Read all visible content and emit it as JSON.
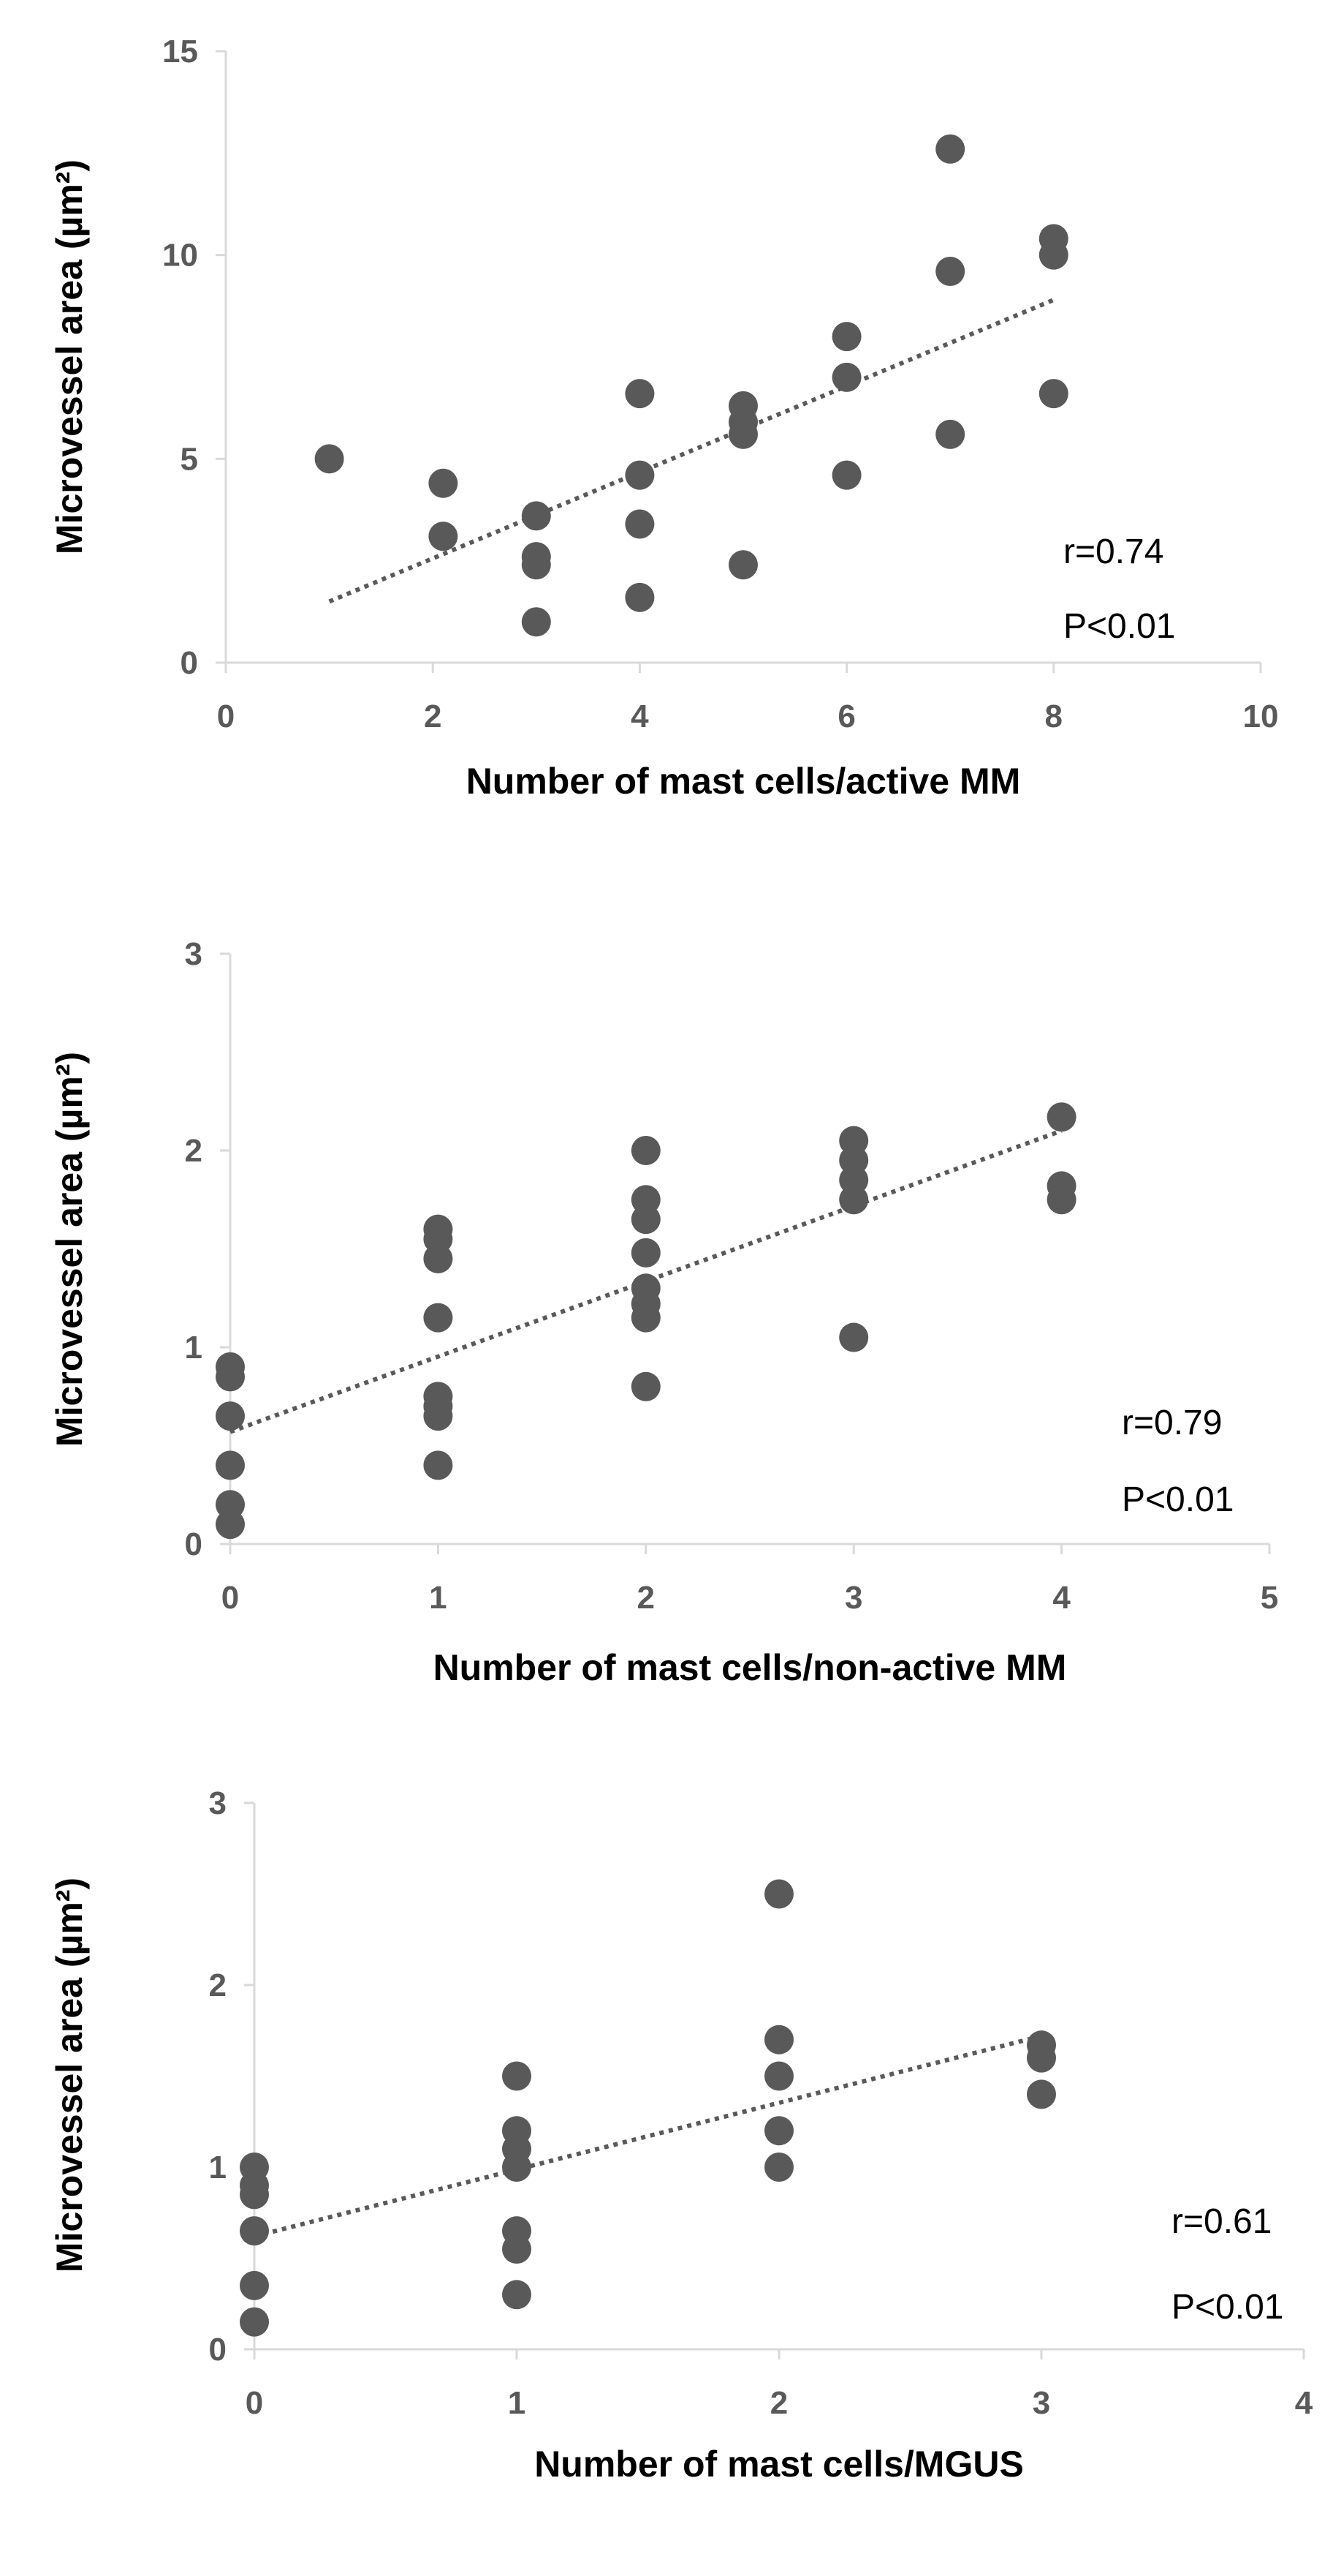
{
  "chart_data": [
    {
      "type": "scatter",
      "xlabel": "Number of mast cells/active MM",
      "ylabel": "Microvessel area (µm²)",
      "xlim": [
        0,
        10
      ],
      "ylim": [
        0,
        15
      ],
      "xticks": [
        0,
        2,
        4,
        6,
        8,
        10
      ],
      "yticks": [
        0,
        5,
        10,
        15
      ],
      "points": [
        [
          1,
          5.0
        ],
        [
          2.1,
          4.4
        ],
        [
          2.1,
          3.1
        ],
        [
          3,
          3.6
        ],
        [
          3,
          2.6
        ],
        [
          3,
          2.4
        ],
        [
          3,
          1.0
        ],
        [
          4,
          6.6
        ],
        [
          4,
          4.6
        ],
        [
          4,
          3.4
        ],
        [
          4,
          1.6
        ],
        [
          5,
          6.3
        ],
        [
          5,
          5.9
        ],
        [
          5,
          5.6
        ],
        [
          5,
          2.4
        ],
        [
          6,
          8.0
        ],
        [
          6,
          7.0
        ],
        [
          6,
          4.6
        ],
        [
          7,
          12.6
        ],
        [
          7,
          9.6
        ],
        [
          7,
          5.6
        ],
        [
          8,
          10.4
        ],
        [
          8,
          10.0
        ],
        [
          8,
          6.6
        ]
      ],
      "trendline": {
        "x": [
          1,
          8
        ],
        "y": [
          1.5,
          8.9
        ]
      },
      "annotations": [
        "r=0.74",
        "P<0.01"
      ]
    },
    {
      "type": "scatter",
      "xlabel": "Number of mast cells/non-active MM",
      "ylabel": "Microvessel area (µm²)",
      "xlim": [
        0,
        5
      ],
      "ylim": [
        0,
        3
      ],
      "xticks": [
        0,
        1,
        2,
        3,
        4,
        5
      ],
      "yticks": [
        0,
        1,
        2,
        3
      ],
      "points": [
        [
          0,
          0.9
        ],
        [
          0,
          0.85
        ],
        [
          0,
          0.65
        ],
        [
          0,
          0.4
        ],
        [
          0,
          0.2
        ],
        [
          0,
          0.1
        ],
        [
          1,
          1.6
        ],
        [
          1,
          1.55
        ],
        [
          1,
          1.45
        ],
        [
          1,
          1.15
        ],
        [
          1,
          0.75
        ],
        [
          1,
          0.7
        ],
        [
          1,
          0.65
        ],
        [
          1,
          0.4
        ],
        [
          2,
          2.0
        ],
        [
          2,
          1.75
        ],
        [
          2,
          1.65
        ],
        [
          2,
          1.48
        ],
        [
          2,
          1.3
        ],
        [
          2,
          1.22
        ],
        [
          2,
          1.15
        ],
        [
          2,
          0.8
        ],
        [
          3,
          2.05
        ],
        [
          3,
          1.95
        ],
        [
          3,
          1.85
        ],
        [
          3,
          1.75
        ],
        [
          3,
          1.05
        ],
        [
          4,
          2.17
        ],
        [
          4,
          1.82
        ],
        [
          4,
          1.75
        ]
      ],
      "trendline": {
        "x": [
          0,
          4
        ],
        "y": [
          0.57,
          2.1
        ]
      },
      "annotations": [
        "r=0.79",
        "P<0.01"
      ]
    },
    {
      "type": "scatter",
      "xlabel": "Number of mast cells/MGUS",
      "ylabel": "Microvessel area (µm²)",
      "xlim": [
        0,
        4
      ],
      "ylim": [
        0,
        3
      ],
      "xticks": [
        0,
        1,
        2,
        3,
        4
      ],
      "yticks": [
        0,
        1,
        2,
        3
      ],
      "points": [
        [
          0,
          1.0
        ],
        [
          0,
          0.9
        ],
        [
          0,
          0.85
        ],
        [
          0,
          0.65
        ],
        [
          0,
          0.35
        ],
        [
          0,
          0.15
        ],
        [
          1,
          1.5
        ],
        [
          1,
          1.2
        ],
        [
          1,
          1.1
        ],
        [
          1,
          1.0
        ],
        [
          1,
          0.65
        ],
        [
          1,
          0.55
        ],
        [
          1,
          0.3
        ],
        [
          2,
          2.5
        ],
        [
          2,
          1.7
        ],
        [
          2,
          1.5
        ],
        [
          2,
          1.2
        ],
        [
          2,
          1.0
        ],
        [
          3,
          1.67
        ],
        [
          3,
          1.6
        ],
        [
          3,
          1.4
        ]
      ],
      "trendline": {
        "x": [
          0,
          3
        ],
        "y": [
          0.62,
          1.72
        ]
      },
      "annotations": [
        "r=0.61",
        "P<0.01"
      ]
    }
  ]
}
